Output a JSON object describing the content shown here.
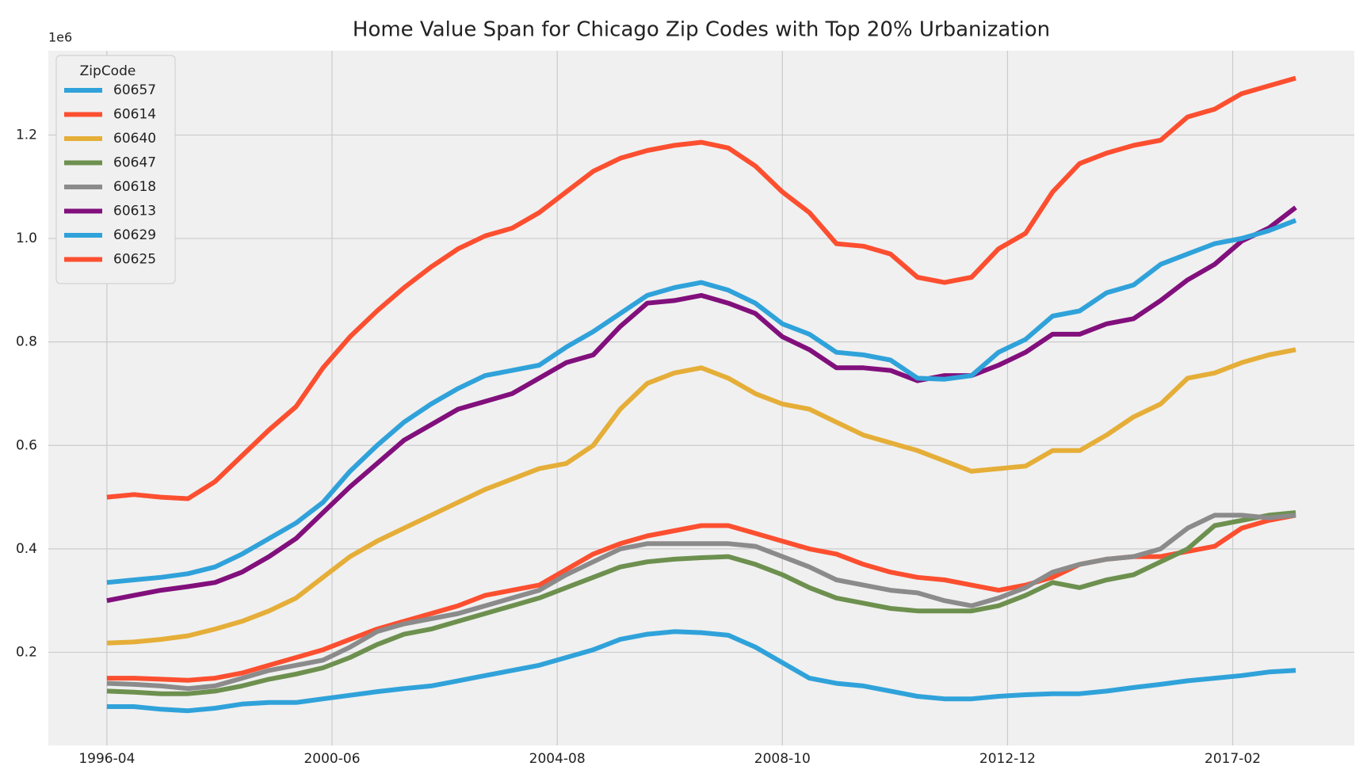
{
  "chart_data": {
    "type": "line",
    "title": "Home Value Span for Chicago Zip Codes with Top 20% Urbanization",
    "y_offset_label": "1e6",
    "legend_title": "ZipCode",
    "legend": "upper left",
    "grid": true,
    "x": [
      "1996-04",
      "1996-10",
      "1997-04",
      "1997-10",
      "1998-04",
      "1998-10",
      "1999-04",
      "1999-10",
      "2000-04",
      "2000-10",
      "2001-04",
      "2001-10",
      "2002-04",
      "2002-10",
      "2003-04",
      "2003-10",
      "2004-04",
      "2004-10",
      "2005-04",
      "2005-10",
      "2006-04",
      "2006-10",
      "2007-04",
      "2007-10",
      "2008-04",
      "2008-10",
      "2009-04",
      "2009-10",
      "2010-04",
      "2010-10",
      "2011-04",
      "2011-10",
      "2012-04",
      "2012-10",
      "2013-04",
      "2013-10",
      "2014-04",
      "2014-10",
      "2015-04",
      "2015-10",
      "2016-04",
      "2016-10",
      "2017-04",
      "2017-10",
      "2018-04"
    ],
    "xlim": [
      "1995-03",
      "2019-05"
    ],
    "xticks": [
      "1996-04",
      "2000-06",
      "2004-08",
      "2008-10",
      "2012-12",
      "2017-02"
    ],
    "ylim": [
      0.02,
      1.363
    ],
    "yticks": [
      0.2,
      0.4,
      0.6,
      0.8,
      {
        "value": 1,
        "label": "1.0"
      },
      1.2
    ],
    "series": [
      {
        "name": "60657",
        "color": "#30a2da",
        "values": [
          0.095,
          0.095,
          0.09,
          0.087,
          0.092,
          0.1,
          0.103,
          0.103,
          0.11,
          0.117,
          0.124,
          0.13,
          0.135,
          0.145,
          0.155,
          0.165,
          0.175,
          0.19,
          0.205,
          0.225,
          0.235,
          0.24,
          0.238,
          0.233,
          0.21,
          0.18,
          0.15,
          0.14,
          0.135,
          0.125,
          0.115,
          0.11,
          0.11,
          0.115,
          0.118,
          0.12,
          0.12,
          0.125,
          0.132,
          0.138,
          0.145,
          0.15,
          0.155,
          0.162,
          0.165
        ]
      },
      {
        "name": "60614",
        "color": "#fc4f30",
        "values": [
          0.15,
          0.15,
          0.148,
          0.146,
          0.15,
          0.16,
          0.175,
          0.19,
          0.205,
          0.225,
          0.245,
          0.26,
          0.275,
          0.29,
          0.31,
          0.32,
          0.33,
          0.36,
          0.39,
          0.41,
          0.425,
          0.435,
          0.445,
          0.445,
          0.43,
          0.415,
          0.4,
          0.39,
          0.37,
          0.355,
          0.345,
          0.34,
          0.33,
          0.32,
          0.33,
          0.345,
          0.37,
          0.38,
          0.385,
          0.385,
          0.395,
          0.405,
          0.44,
          0.455,
          0.465
        ]
      },
      {
        "name": "60640",
        "color": "#e5ae38",
        "values": [
          0.218,
          0.22,
          0.225,
          0.232,
          0.245,
          0.26,
          0.28,
          0.305,
          0.345,
          0.385,
          0.415,
          0.44,
          0.465,
          0.49,
          0.515,
          0.535,
          0.555,
          0.565,
          0.6,
          0.67,
          0.72,
          0.74,
          0.75,
          0.73,
          0.7,
          0.68,
          0.67,
          0.645,
          0.62,
          0.605,
          0.59,
          0.57,
          0.55,
          0.555,
          0.56,
          0.59,
          0.59,
          0.62,
          0.655,
          0.68,
          0.73,
          0.74,
          0.76,
          0.775,
          0.785
        ]
      },
      {
        "name": "60647",
        "color": "#6d904f",
        "values": [
          0.125,
          0.123,
          0.12,
          0.12,
          0.125,
          0.135,
          0.148,
          0.158,
          0.17,
          0.19,
          0.215,
          0.235,
          0.245,
          0.26,
          0.275,
          0.29,
          0.305,
          0.325,
          0.345,
          0.365,
          0.375,
          0.38,
          0.383,
          0.385,
          0.37,
          0.35,
          0.325,
          0.305,
          0.295,
          0.285,
          0.28,
          0.28,
          0.28,
          0.29,
          0.31,
          0.335,
          0.325,
          0.34,
          0.35,
          0.375,
          0.4,
          0.445,
          0.455,
          0.465,
          0.47
        ]
      },
      {
        "name": "60618",
        "color": "#8b8b8b",
        "values": [
          0.14,
          0.138,
          0.135,
          0.13,
          0.135,
          0.15,
          0.165,
          0.175,
          0.185,
          0.21,
          0.24,
          0.255,
          0.265,
          0.275,
          0.29,
          0.305,
          0.32,
          0.35,
          0.375,
          0.4,
          0.41,
          0.41,
          0.41,
          0.41,
          0.405,
          0.385,
          0.365,
          0.34,
          0.33,
          0.32,
          0.315,
          0.3,
          0.29,
          0.305,
          0.325,
          0.355,
          0.37,
          0.38,
          0.385,
          0.4,
          0.44,
          0.465,
          0.465,
          0.46,
          0.465
        ]
      },
      {
        "name": "60613",
        "color": "#810f7c",
        "values": [
          0.3,
          0.31,
          0.32,
          0.327,
          0.335,
          0.355,
          0.385,
          0.42,
          0.47,
          0.52,
          0.565,
          0.61,
          0.64,
          0.67,
          0.685,
          0.7,
          0.73,
          0.76,
          0.775,
          0.83,
          0.875,
          0.88,
          0.89,
          0.875,
          0.855,
          0.81,
          0.785,
          0.75,
          0.75,
          0.745,
          0.725,
          0.735,
          0.735,
          0.755,
          0.78,
          0.815,
          0.815,
          0.835,
          0.845,
          0.88,
          0.92,
          0.95,
          0.995,
          1.02,
          1.06
        ]
      },
      {
        "name": "60629",
        "color": "#30a2da",
        "values": [
          0.335,
          0.34,
          0.345,
          0.352,
          0.365,
          0.39,
          0.42,
          0.45,
          0.49,
          0.55,
          0.6,
          0.645,
          0.68,
          0.71,
          0.735,
          0.745,
          0.755,
          0.79,
          0.82,
          0.855,
          0.89,
          0.905,
          0.915,
          0.9,
          0.875,
          0.835,
          0.815,
          0.78,
          0.775,
          0.765,
          0.73,
          0.728,
          0.735,
          0.78,
          0.805,
          0.85,
          0.86,
          0.895,
          0.91,
          0.95,
          0.97,
          0.99,
          1.0,
          1.015,
          1.035
        ]
      },
      {
        "name": "60625",
        "color": "#fc4f30",
        "values": [
          0.5,
          0.505,
          0.5,
          0.497,
          0.53,
          0.58,
          0.63,
          0.675,
          0.75,
          0.81,
          0.86,
          0.905,
          0.945,
          0.98,
          1.005,
          1.02,
          1.05,
          1.09,
          1.13,
          1.155,
          1.17,
          1.18,
          1.186,
          1.175,
          1.14,
          1.09,
          1.05,
          0.99,
          0.985,
          0.97,
          0.925,
          0.915,
          0.925,
          0.98,
          1.01,
          1.09,
          1.145,
          1.165,
          1.18,
          1.19,
          1.235,
          1.25,
          1.28,
          1.295,
          1.31
        ]
      }
    ]
  }
}
